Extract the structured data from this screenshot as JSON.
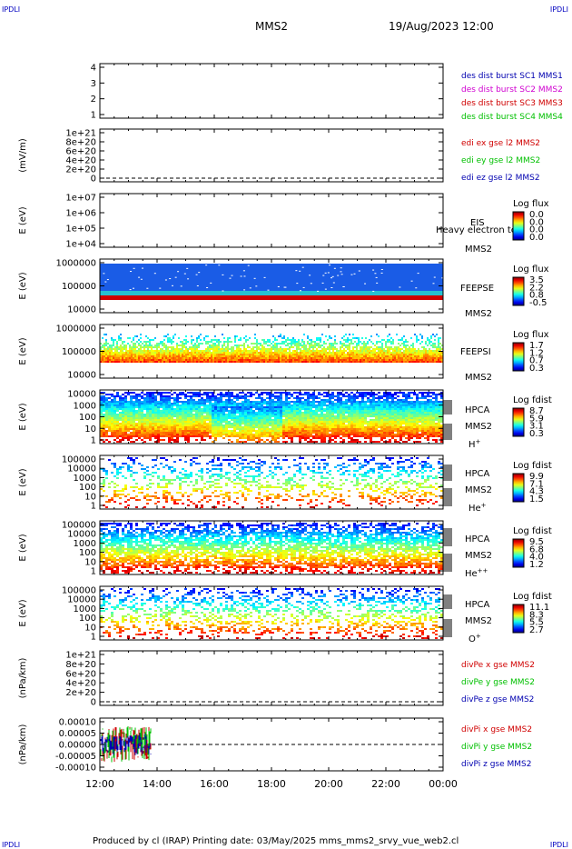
{
  "corners": {
    "tl": "IPDLI",
    "tr": "IPDLI",
    "bl": "IPDLI",
    "br": "IPDLI"
  },
  "header": {
    "spacecraft": "MMS2",
    "datetime": "19/Aug/2023 12:00"
  },
  "footer": {
    "text": "Produced by cl (IRAP)   Printing date: 03/May/2025   mms_mms2_srvy_vue_web2.cl"
  },
  "chart_data": {
    "type": "heatmap",
    "time_ticks": [
      "12:00",
      "14:00",
      "16:00",
      "18:00",
      "20:00",
      "22:00",
      "00:00"
    ],
    "panels": [
      {
        "name": "dist-panel",
        "ylabel": "",
        "yticks": [
          "4",
          "3",
          "2",
          "1"
        ],
        "legend": [
          {
            "text": "des dist burst SC1 MMS1",
            "color": "#0000b0"
          },
          {
            "text": "des dist burst SC2 MMS2",
            "color": "#d000d0"
          },
          {
            "text": "des dist burst SC3 MMS3",
            "color": "#d00000"
          },
          {
            "text": "des dist burst SC4 MMS4",
            "color": "#00c000"
          }
        ]
      },
      {
        "name": "edi-panel",
        "ylabel": "(mV/m)",
        "yticks": [
          "1e+21",
          "8e+20",
          "6e+20",
          "4e+20",
          "2e+20",
          "0"
        ],
        "legend": [
          {
            "text": "edi ex gse l2 MMS2",
            "color": "#d00000"
          },
          {
            "text": "edi ey gse l2 MMS2",
            "color": "#00c000"
          },
          {
            "text": "edi ez gse l2 MMS2",
            "color": "#0000b0"
          }
        ]
      },
      {
        "name": "eis-panel",
        "ylabel": "E (eV)",
        "yticks": [
          "1e+07",
          "1e+06",
          "1e+05",
          "1e+04"
        ],
        "labels": [
          "EIS",
          "Heavy electron to",
          "MMS2"
        ],
        "cbar_title": "Log flux",
        "cbar_ticks": [
          "0.0",
          "0.0",
          "0.0",
          "0.0"
        ]
      },
      {
        "name": "feepse-panel",
        "ylabel": "E (eV)",
        "yticks": [
          "1000000",
          "100000",
          "10000"
        ],
        "labels": [
          "FEEPSE",
          "MMS2"
        ],
        "cbar_title": "Log flux",
        "cbar_ticks": [
          "3.5",
          "2.2",
          "0.8",
          "-0.5"
        ]
      },
      {
        "name": "feepsi-panel",
        "ylabel": "E (eV)",
        "yticks": [
          "1000000",
          "100000",
          "10000"
        ],
        "labels": [
          "FEEPSI",
          "MMS2"
        ],
        "cbar_title": "Log flux",
        "cbar_ticks": [
          "1.7",
          "1.2",
          "0.7",
          "0.3"
        ]
      },
      {
        "name": "hpca-h-panel",
        "ylabel": "E (eV)",
        "yticks": [
          "10000",
          "1000",
          "100",
          "10",
          "1"
        ],
        "labels": [
          "HPCA",
          "MMS2"
        ],
        "species": "H",
        "charge": "+",
        "cbar_title": "Log fdist",
        "cbar_ticks": [
          "8.7",
          "5.9",
          "3.1",
          "0.3"
        ]
      },
      {
        "name": "hpca-he-panel",
        "ylabel": "E (eV)",
        "yticks": [
          "100000",
          "10000",
          "1000",
          "100",
          "10",
          "1"
        ],
        "labels": [
          "HPCA",
          "MMS2"
        ],
        "species": "He",
        "charge": "+",
        "cbar_title": "Log fdist",
        "cbar_ticks": [
          "9.9",
          "7.1",
          "4.3",
          "1.5"
        ]
      },
      {
        "name": "hpca-he2-panel",
        "ylabel": "E (eV)",
        "yticks": [
          "100000",
          "10000",
          "1000",
          "100",
          "10",
          "1"
        ],
        "labels": [
          "HPCA",
          "MMS2"
        ],
        "species": "He",
        "charge": "++",
        "cbar_title": "Log fdist",
        "cbar_ticks": [
          "9.5",
          "6.8",
          "4.0",
          "1.2"
        ]
      },
      {
        "name": "hpca-o-panel",
        "ylabel": "E (eV)",
        "yticks": [
          "100000",
          "10000",
          "1000",
          "100",
          "10",
          "1"
        ],
        "labels": [
          "HPCA",
          "MMS2"
        ],
        "species": "O",
        "charge": "+",
        "cbar_title": "Log fdist",
        "cbar_ticks": [
          "11.1",
          "8.3",
          "5.5",
          "2.7"
        ]
      },
      {
        "name": "divpe-panel",
        "ylabel": "(nPa/km)",
        "yticks": [
          "1e+21",
          "8e+20",
          "6e+20",
          "4e+20",
          "2e+20",
          "0"
        ],
        "legend": [
          {
            "text": "divPe x gse MMS2",
            "color": "#d00000"
          },
          {
            "text": "divPe y gse MMS2",
            "color": "#00c000"
          },
          {
            "text": "divPe z gse MMS2",
            "color": "#0000b0"
          }
        ]
      },
      {
        "name": "divpi-panel",
        "ylabel": "(nPa/km)",
        "yticks": [
          "0.00010",
          "0.00005",
          "0.00000",
          "-0.00005",
          "-0.00010"
        ],
        "legend": [
          {
            "text": "divPi x gse MMS2",
            "color": "#d00000"
          },
          {
            "text": "divPi y gse MMS2",
            "color": "#00c000"
          },
          {
            "text": "divPi z gse MMS2",
            "color": "#0000b0"
          }
        ]
      }
    ]
  }
}
